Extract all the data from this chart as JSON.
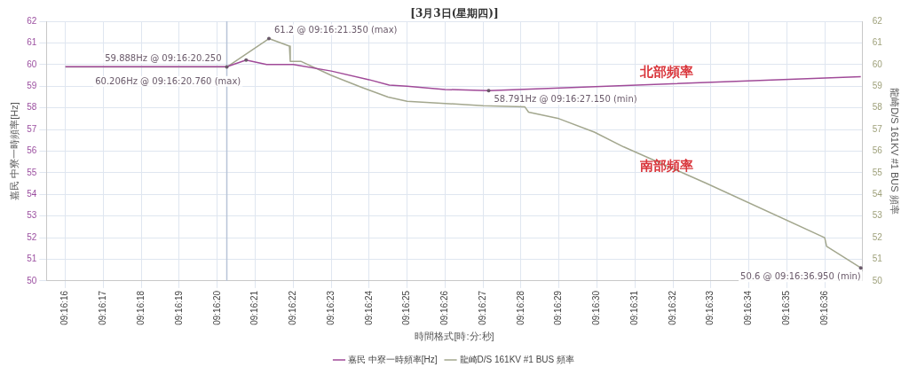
{
  "chart_data": {
    "type": "line",
    "title": "[3月3日(星期四)]",
    "xlabel": "時間格式[時:分:秒]",
    "ylabel": "嘉民 中寮一時頻率[Hz]",
    "y2label": "龍崎D/S 161KV #1 BUS 頻率",
    "xlim": [
      9.270972,
      9.276944
    ],
    "xticks": [
      {
        "value": 9.271111,
        "label": "09:16:16"
      },
      {
        "value": 9.271389,
        "label": "09:16:17"
      },
      {
        "value": 9.271667,
        "label": "09:16:18"
      },
      {
        "value": 9.271944,
        "label": "09:16:19"
      },
      {
        "value": 9.272222,
        "label": "09:16:20"
      },
      {
        "value": 9.2725,
        "label": "09:16:21"
      },
      {
        "value": 9.272778,
        "label": "09:16:22"
      },
      {
        "value": 9.273056,
        "label": "09:16:23"
      },
      {
        "value": 9.273333,
        "label": "09:16:24"
      },
      {
        "value": 9.273611,
        "label": "09:16:25"
      },
      {
        "value": 9.273889,
        "label": "09:16:26"
      },
      {
        "value": 9.274167,
        "label": "09:16:27"
      },
      {
        "value": 9.274444,
        "label": "09:16:28"
      },
      {
        "value": 9.274722,
        "label": "09:16:29"
      },
      {
        "value": 9.275,
        "label": "09:16:30"
      },
      {
        "value": 9.275278,
        "label": "09:16:31"
      },
      {
        "value": 9.275556,
        "label": "09:16:32"
      },
      {
        "value": 9.275833,
        "label": "09:16:33"
      },
      {
        "value": 9.276111,
        "label": "09:16:34"
      },
      {
        "value": 9.276389,
        "label": "09:16:35"
      },
      {
        "value": 9.276667,
        "label": "09:16:36"
      }
    ],
    "ylim": [
      50,
      62
    ],
    "yticks": [
      50,
      51,
      52,
      53,
      54,
      55,
      56,
      57,
      58,
      59,
      60,
      61,
      62
    ],
    "y2lim": [
      50,
      62
    ],
    "y2ticks": [
      50,
      51,
      52,
      53,
      54,
      55,
      56,
      57,
      58,
      59,
      60,
      61,
      62
    ],
    "grid": true,
    "legend": "bottom",
    "marker": "none",
    "line_style": "solid",
    "series": [
      {
        "name": "嘉民 中寮一時頻率[Hz]",
        "color": "#a04a98",
        "x": [
          9.271111,
          9.272292,
          9.272433,
          9.272583,
          9.272778,
          9.273056,
          9.273333,
          9.273481,
          9.273611,
          9.273889,
          9.274208,
          9.276931
        ],
        "values": [
          59.9,
          59.9,
          60.206,
          60.0,
          60.0,
          59.7,
          59.3,
          59.05,
          59.0,
          58.85,
          58.791,
          59.44
        ]
      },
      {
        "name": "龍崎D/S 161KV #1 BUS 頻率",
        "color": "#a3a78e",
        "axis": "y2",
        "x": [
          9.271111,
          9.272292,
          9.2726,
          9.27275,
          9.272756,
          9.272833,
          9.273056,
          9.273278,
          9.273472,
          9.273611,
          9.273889,
          9.274167,
          9.274472,
          9.2745,
          9.274722,
          9.274981,
          9.275194,
          9.275797,
          9.276667,
          9.276681,
          9.276931
        ],
        "values": [
          59.89,
          59.888,
          61.2,
          60.85,
          60.15,
          60.15,
          59.5,
          58.95,
          58.5,
          58.3,
          58.2,
          58.1,
          58.05,
          57.8,
          57.5,
          56.88,
          56.2,
          54.52,
          52.0,
          51.6,
          50.6
        ]
      }
    ],
    "ref_lines": [
      {
        "axis": "x",
        "value": 9.272292,
        "color": "#b8c4d8"
      }
    ],
    "annotations": [
      {
        "text": "61.2 @ 09:16:21.350 (max)",
        "x": 9.2726,
        "y": 61.2
      },
      {
        "text": "60.206Hz @ 09:16:20.760 (max)",
        "x": 9.272433,
        "y": 60.206
      },
      {
        "text": "59.888Hz @ 09:16:20.250",
        "x": 9.272292,
        "y": 59.888
      },
      {
        "text": "58.791Hz @ 09:16:27.150 (min)",
        "x": 9.274208,
        "y": 58.791
      },
      {
        "text": "50.6 @ 09:16:36.950 (min)",
        "x": 9.276931,
        "y": 50.6
      },
      "北部頻率",
      "南部頻率"
    ]
  }
}
